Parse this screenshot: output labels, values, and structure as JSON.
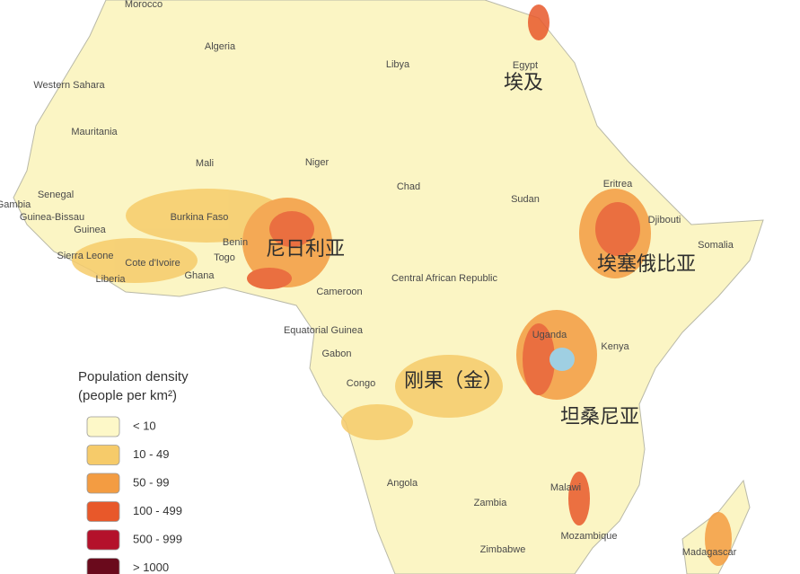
{
  "map": {
    "country_labels": [
      "Morocco",
      "Algeria",
      "Libya",
      "Egypt",
      "Western Sahara",
      "Mauritania",
      "Mali",
      "Niger",
      "Chad",
      "Sudan",
      "Eritrea",
      "Djibouti",
      "Somalia",
      "Senegal",
      "Gambia",
      "Guinea-Bissau",
      "Guinea",
      "Sierra Leone",
      "Liberia",
      "Cote d'Ivoire",
      "Burkina Faso",
      "Ghana",
      "Benin",
      "Togo",
      "Cameroon",
      "Central African Republic",
      "Equatorial Guinea",
      "Gabon",
      "Congo",
      "Uganda",
      "Kenya",
      "Angola",
      "Zambia",
      "Malawi",
      "Mozambique",
      "Zimbabwe",
      "Madagascar"
    ],
    "annotations": [
      "埃及",
      "尼日利亚",
      "埃塞俄比亚",
      "刚果（金）",
      "坦桑尼亚"
    ]
  },
  "legend": {
    "title": [
      "Population density",
      "(people per km²)"
    ],
    "items": [
      {
        "label": "< 10",
        "color": "#fdf8c8"
      },
      {
        "label": "10 - 49",
        "color": "#f6cb6a"
      },
      {
        "label": "50 - 99",
        "color": "#f39c42"
      },
      {
        "label": "100 - 499",
        "color": "#e8582a"
      },
      {
        "label": "500 - 999",
        "color": "#b4112b"
      },
      {
        "label": "> 1000",
        "color": "#6a0a1c"
      }
    ]
  }
}
